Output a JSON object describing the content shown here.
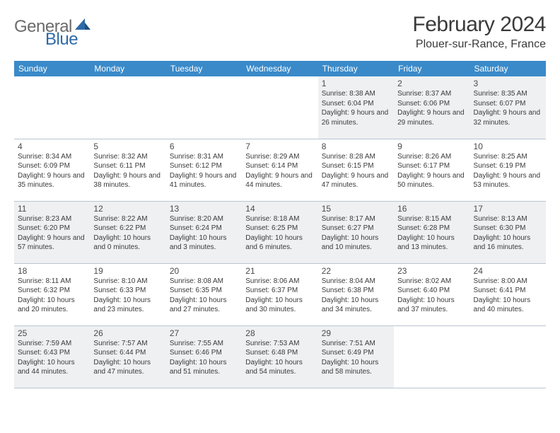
{
  "logo": {
    "gray": "General",
    "blue": "Blue"
  },
  "title": "February 2024",
  "location": "Plouer-sur-Rance, France",
  "colors": {
    "header_bg": "#3a8ac9",
    "header_text": "#ffffff",
    "odd_row_bg": "#eef0f2",
    "even_row_bg": "#ffffff",
    "border": "#b8c4cf",
    "title_text": "#3a3a3a",
    "logo_gray": "#6b6b6b",
    "logo_blue": "#2d6aa8"
  },
  "weekdays": [
    "Sunday",
    "Monday",
    "Tuesday",
    "Wednesday",
    "Thursday",
    "Friday",
    "Saturday"
  ],
  "weeks": [
    [
      null,
      null,
      null,
      null,
      {
        "n": "1",
        "sr": "8:38 AM",
        "ss": "6:04 PM",
        "dl": "9 hours and 26 minutes."
      },
      {
        "n": "2",
        "sr": "8:37 AM",
        "ss": "6:06 PM",
        "dl": "9 hours and 29 minutes."
      },
      {
        "n": "3",
        "sr": "8:35 AM",
        "ss": "6:07 PM",
        "dl": "9 hours and 32 minutes."
      }
    ],
    [
      {
        "n": "4",
        "sr": "8:34 AM",
        "ss": "6:09 PM",
        "dl": "9 hours and 35 minutes."
      },
      {
        "n": "5",
        "sr": "8:32 AM",
        "ss": "6:11 PM",
        "dl": "9 hours and 38 minutes."
      },
      {
        "n": "6",
        "sr": "8:31 AM",
        "ss": "6:12 PM",
        "dl": "9 hours and 41 minutes."
      },
      {
        "n": "7",
        "sr": "8:29 AM",
        "ss": "6:14 PM",
        "dl": "9 hours and 44 minutes."
      },
      {
        "n": "8",
        "sr": "8:28 AM",
        "ss": "6:15 PM",
        "dl": "9 hours and 47 minutes."
      },
      {
        "n": "9",
        "sr": "8:26 AM",
        "ss": "6:17 PM",
        "dl": "9 hours and 50 minutes."
      },
      {
        "n": "10",
        "sr": "8:25 AM",
        "ss": "6:19 PM",
        "dl": "9 hours and 53 minutes."
      }
    ],
    [
      {
        "n": "11",
        "sr": "8:23 AM",
        "ss": "6:20 PM",
        "dl": "9 hours and 57 minutes."
      },
      {
        "n": "12",
        "sr": "8:22 AM",
        "ss": "6:22 PM",
        "dl": "10 hours and 0 minutes."
      },
      {
        "n": "13",
        "sr": "8:20 AM",
        "ss": "6:24 PM",
        "dl": "10 hours and 3 minutes."
      },
      {
        "n": "14",
        "sr": "8:18 AM",
        "ss": "6:25 PM",
        "dl": "10 hours and 6 minutes."
      },
      {
        "n": "15",
        "sr": "8:17 AM",
        "ss": "6:27 PM",
        "dl": "10 hours and 10 minutes."
      },
      {
        "n": "16",
        "sr": "8:15 AM",
        "ss": "6:28 PM",
        "dl": "10 hours and 13 minutes."
      },
      {
        "n": "17",
        "sr": "8:13 AM",
        "ss": "6:30 PM",
        "dl": "10 hours and 16 minutes."
      }
    ],
    [
      {
        "n": "18",
        "sr": "8:11 AM",
        "ss": "6:32 PM",
        "dl": "10 hours and 20 minutes."
      },
      {
        "n": "19",
        "sr": "8:10 AM",
        "ss": "6:33 PM",
        "dl": "10 hours and 23 minutes."
      },
      {
        "n": "20",
        "sr": "8:08 AM",
        "ss": "6:35 PM",
        "dl": "10 hours and 27 minutes."
      },
      {
        "n": "21",
        "sr": "8:06 AM",
        "ss": "6:37 PM",
        "dl": "10 hours and 30 minutes."
      },
      {
        "n": "22",
        "sr": "8:04 AM",
        "ss": "6:38 PM",
        "dl": "10 hours and 34 minutes."
      },
      {
        "n": "23",
        "sr": "8:02 AM",
        "ss": "6:40 PM",
        "dl": "10 hours and 37 minutes."
      },
      {
        "n": "24",
        "sr": "8:00 AM",
        "ss": "6:41 PM",
        "dl": "10 hours and 40 minutes."
      }
    ],
    [
      {
        "n": "25",
        "sr": "7:59 AM",
        "ss": "6:43 PM",
        "dl": "10 hours and 44 minutes."
      },
      {
        "n": "26",
        "sr": "7:57 AM",
        "ss": "6:44 PM",
        "dl": "10 hours and 47 minutes."
      },
      {
        "n": "27",
        "sr": "7:55 AM",
        "ss": "6:46 PM",
        "dl": "10 hours and 51 minutes."
      },
      {
        "n": "28",
        "sr": "7:53 AM",
        "ss": "6:48 PM",
        "dl": "10 hours and 54 minutes."
      },
      {
        "n": "29",
        "sr": "7:51 AM",
        "ss": "6:49 PM",
        "dl": "10 hours and 58 minutes."
      },
      null,
      null
    ]
  ],
  "labels": {
    "sunrise": "Sunrise:",
    "sunset": "Sunset:",
    "daylight": "Daylight:"
  }
}
